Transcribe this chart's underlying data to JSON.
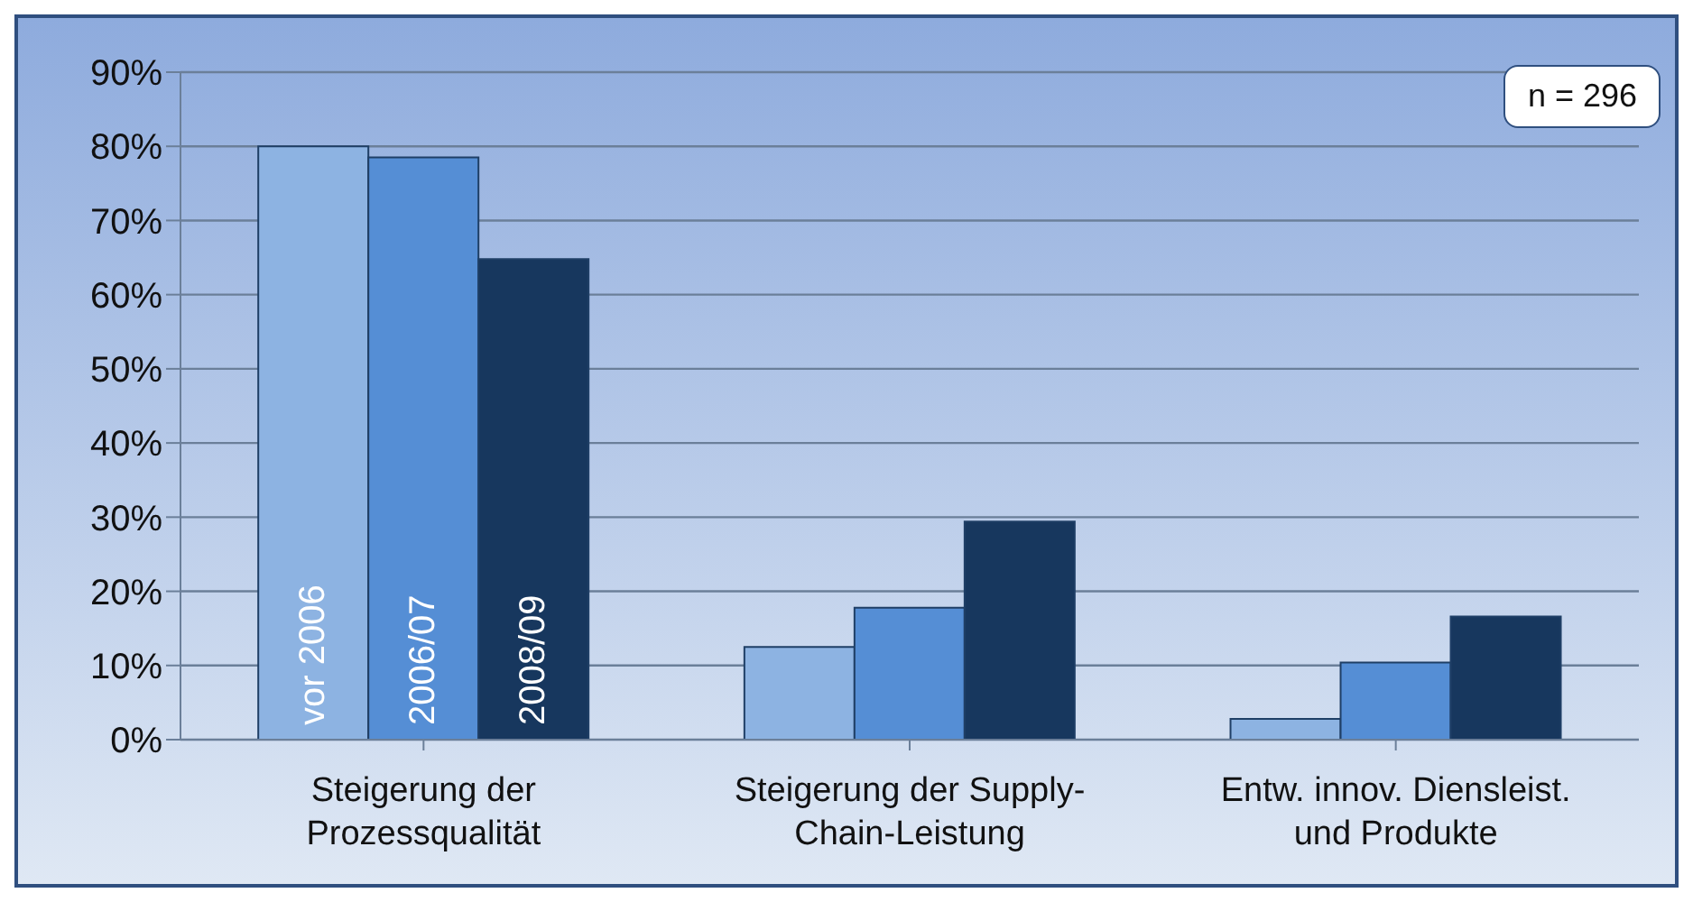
{
  "chart_data": {
    "type": "bar",
    "categories": [
      "Steigerung der Prozessqualität",
      "Steigerung der Supply-Chain-Leistung",
      "Entw. innov. Diensleist. und Produkte"
    ],
    "series": [
      {
        "name": "vor 2006",
        "color": "#8db3e2",
        "values": [
          80,
          12.5,
          2.8
        ]
      },
      {
        "name": "2006/07",
        "color": "#558ed5",
        "values": [
          78.5,
          17.8,
          10.4
        ]
      },
      {
        "name": "2008/09",
        "color": "#17375e",
        "values": [
          64.8,
          29.4,
          16.6
        ]
      }
    ],
    "ylim": [
      0,
      90
    ],
    "yticks": [
      {
        "value": 0,
        "label": "0%"
      },
      {
        "value": 10,
        "label": "10%"
      },
      {
        "value": 20,
        "label": "20%"
      },
      {
        "value": 30,
        "label": "30%"
      },
      {
        "value": 40,
        "label": "40%"
      },
      {
        "value": 50,
        "label": "50%"
      },
      {
        "value": 60,
        "label": "60%"
      },
      {
        "value": 70,
        "label": "70%"
      },
      {
        "value": 80,
        "label": "80%"
      },
      {
        "value": 90,
        "label": "90%"
      }
    ],
    "grid": "y",
    "legend": false,
    "annotations": [
      "n = 296"
    ]
  }
}
